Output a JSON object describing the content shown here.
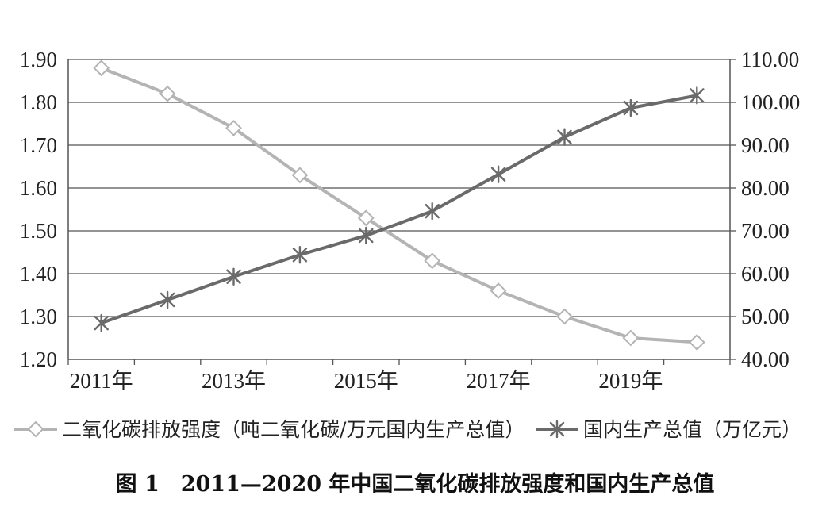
{
  "chart_data": {
    "type": "line",
    "x": [
      "2011",
      "2012",
      "2013",
      "2014",
      "2015",
      "2016",
      "2017",
      "2018",
      "2019",
      "2020"
    ],
    "x_tick_labels": [
      "2011年",
      "2013年",
      "2015年",
      "2017年",
      "2019年"
    ],
    "y_left": {
      "lim": [
        1.2,
        1.9
      ],
      "ticks": [
        "1.90",
        "1.80",
        "1.70",
        "1.60",
        "1.50",
        "1.40",
        "1.30",
        "1.20"
      ]
    },
    "y_right": {
      "lim": [
        40,
        110
      ],
      "ticks": [
        "110.00",
        "100.00",
        "90.00",
        "80.00",
        "70.00",
        "60.00",
        "50.00",
        "40.00"
      ]
    },
    "grid": "horizontal",
    "legend_placement": "bottom",
    "series": [
      {
        "name": "二氧化碳排放强度（吨二氧化碳/万元国内生产总值）",
        "axis": "left",
        "marker": "diamond",
        "color": "#b4b4b4",
        "values": [
          1.88,
          1.82,
          1.74,
          1.63,
          1.53,
          1.43,
          1.36,
          1.3,
          1.25,
          1.24
        ]
      },
      {
        "name": "国内生产总值（万亿元）",
        "axis": "right",
        "marker": "asterisk",
        "color": "#6a6a6a",
        "values": [
          48.5,
          53.9,
          59.3,
          64.4,
          68.9,
          74.6,
          83.2,
          91.9,
          98.7,
          101.6
        ]
      }
    ]
  },
  "caption": "图 1　2011—2020 年中国二氧化碳排放强度和国内生产总值"
}
